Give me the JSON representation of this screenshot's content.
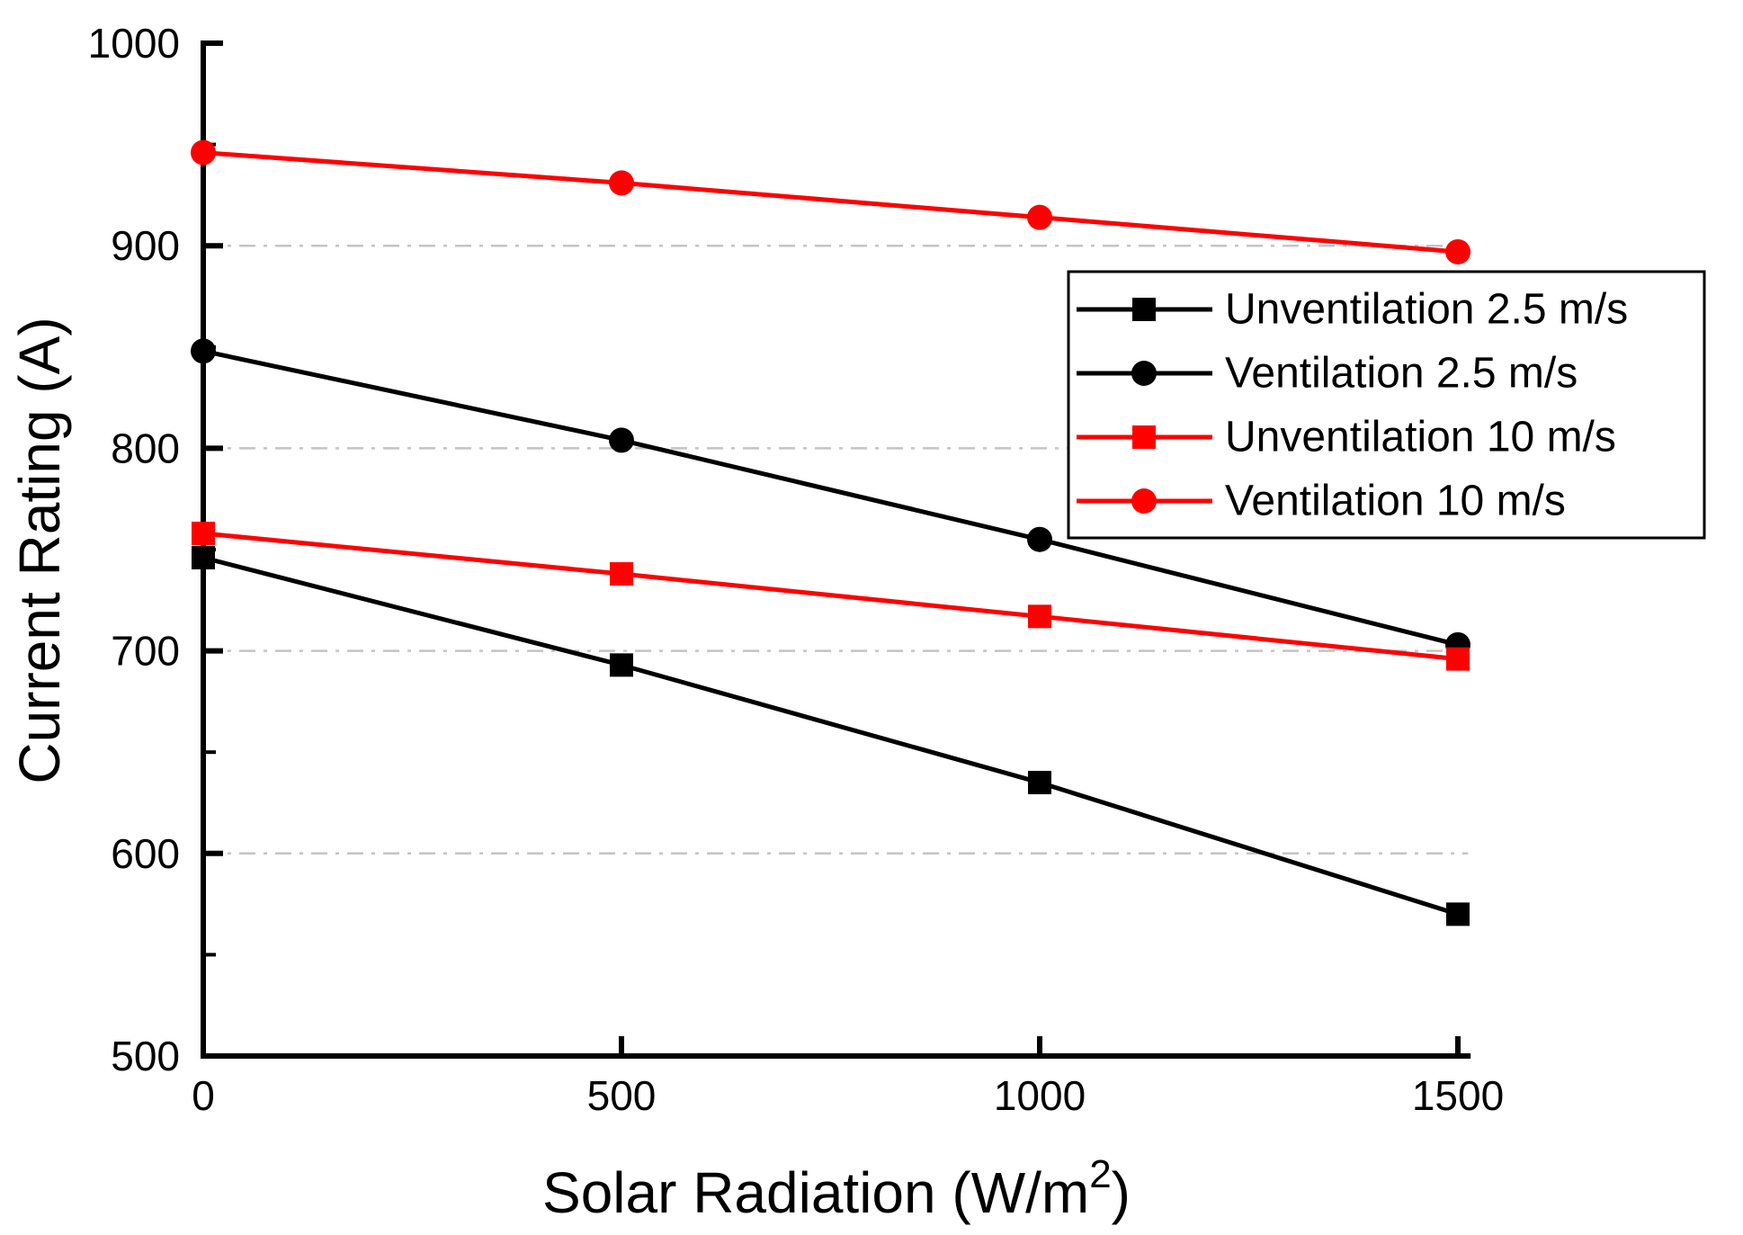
{
  "figure": {
    "background": "#ffffff"
  },
  "chart_data": {
    "type": "line",
    "title": "",
    "xlabel": "Solar Radiation (W/m²)",
    "xlabel_parts": {
      "main": "Solar Radiation (W/m",
      "sup": "2",
      "end": ")"
    },
    "ylabel": "Current Rating (A)",
    "x": [
      0,
      500,
      1000,
      1500
    ],
    "x_tick_labels": [
      "0",
      "500",
      "1000",
      "1500"
    ],
    "y_major_ticks": [
      500,
      600,
      700,
      800,
      900,
      1000
    ],
    "y_minor_ticks": [
      550,
      650,
      750,
      850,
      950
    ],
    "xlim": [
      0,
      1512
    ],
    "ylim": [
      500,
      1000
    ],
    "grid": {
      "y_values": [
        600,
        700,
        800,
        900
      ],
      "style": "dash-dot",
      "color": "#c4c4c4"
    },
    "axis_color": "#000000",
    "legend_position": "upper-right-inside",
    "series": [
      {
        "name": "Unventilation 2.5 m/s",
        "color": "#000000",
        "marker": "square",
        "values": [
          746,
          693,
          635,
          570
        ]
      },
      {
        "name": "Ventilation 2.5 m/s",
        "color": "#000000",
        "marker": "circle",
        "values": [
          848,
          804,
          755,
          703
        ]
      },
      {
        "name": "Unventilation 10 m/s",
        "color": "#ff0000",
        "marker": "square",
        "values": [
          758,
          738,
          717,
          696
        ]
      },
      {
        "name": "Ventilation 10 m/s",
        "color": "#ff0000",
        "marker": "circle",
        "values": [
          946,
          931,
          914,
          897
        ]
      }
    ]
  }
}
